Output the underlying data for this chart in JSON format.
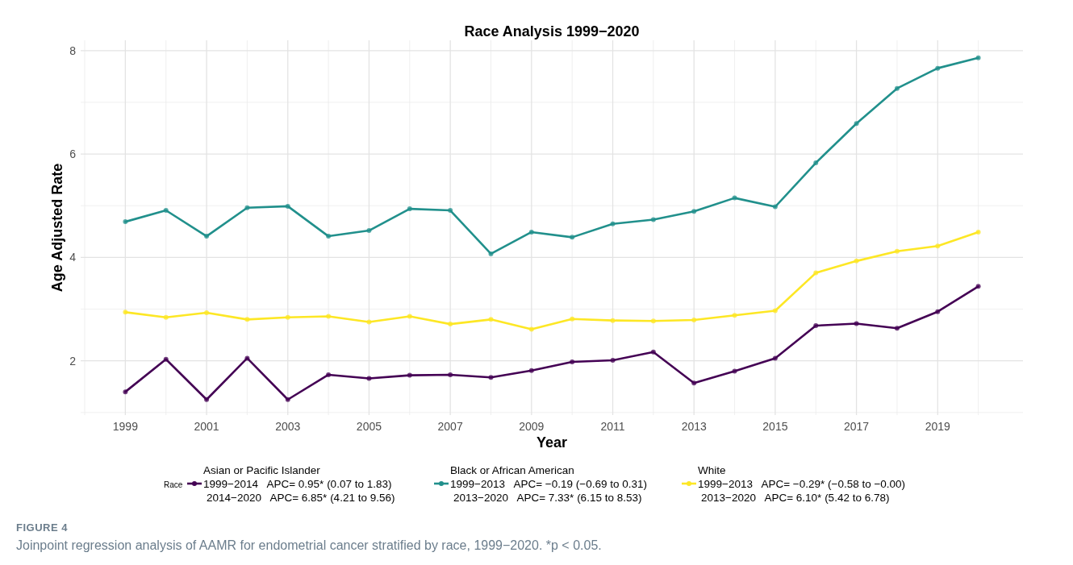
{
  "chart_data": {
    "type": "line",
    "title": "Race Analysis 1999−2020",
    "xlabel": "Year",
    "ylabel": "Age Adjusted Rate",
    "legend_title": "Race",
    "x": [
      1999,
      2000,
      2001,
      2002,
      2003,
      2004,
      2005,
      2006,
      2007,
      2008,
      2009,
      2010,
      2011,
      2012,
      2013,
      2014,
      2015,
      2016,
      2017,
      2018,
      2019,
      2020
    ],
    "series": [
      {
        "name": "Asian or Pacific Islander\n1999−2014   APC= 0.95* (0.07 to 1.83)\n2014−2020   APC= 6.85* (4.21 to 9.56)",
        "color": "#440154",
        "values": [
          1.4,
          2.03,
          1.25,
          2.05,
          1.25,
          1.73,
          1.66,
          1.72,
          1.73,
          1.68,
          1.81,
          1.98,
          2.01,
          2.17,
          1.57,
          1.8,
          2.05,
          2.68,
          2.72,
          2.63,
          2.95,
          3.44
        ]
      },
      {
        "name": "Black or African American\n1999−2013   APC= −0.19 (−0.69 to 0.31)\n2013−2020   APC= 7.33* (6.15 to 8.53)",
        "color": "#21908c",
        "values": [
          4.69,
          4.91,
          4.41,
          4.96,
          4.99,
          4.41,
          4.52,
          4.94,
          4.91,
          4.07,
          4.49,
          4.39,
          4.65,
          4.73,
          4.89,
          5.15,
          4.98,
          5.83,
          6.59,
          7.27,
          7.66,
          7.86
        ]
      },
      {
        "name": "White\n1999−2013   APC= −0.29* (−0.58 to −0.00)\n2013−2020   APC= 6.10* (5.42 to 6.78)",
        "color": "#fde725",
        "values": [
          2.94,
          2.84,
          2.93,
          2.8,
          2.84,
          2.86,
          2.75,
          2.86,
          2.71,
          2.8,
          2.61,
          2.81,
          2.78,
          2.77,
          2.79,
          2.88,
          2.97,
          3.7,
          3.93,
          4.12,
          4.22,
          4.49
        ]
      }
    ],
    "xlim": [
      1997.9,
      2021.1
    ],
    "xticks": [
      1999,
      2001,
      2003,
      2005,
      2007,
      2009,
      2011,
      2013,
      2015,
      2017,
      2019
    ],
    "ylim": [
      0.95,
      8.2
    ],
    "yticks": [
      2,
      4,
      6,
      8
    ],
    "grid": true,
    "legend": "bottom",
    "marker": "circle",
    "line_style": "solid",
    "annotations": [
      "FIGURE 4",
      "Joinpoint regression analysis of AAMR for endometrial cancer stratified by race, 1999−2020. *p < 0.05."
    ]
  }
}
